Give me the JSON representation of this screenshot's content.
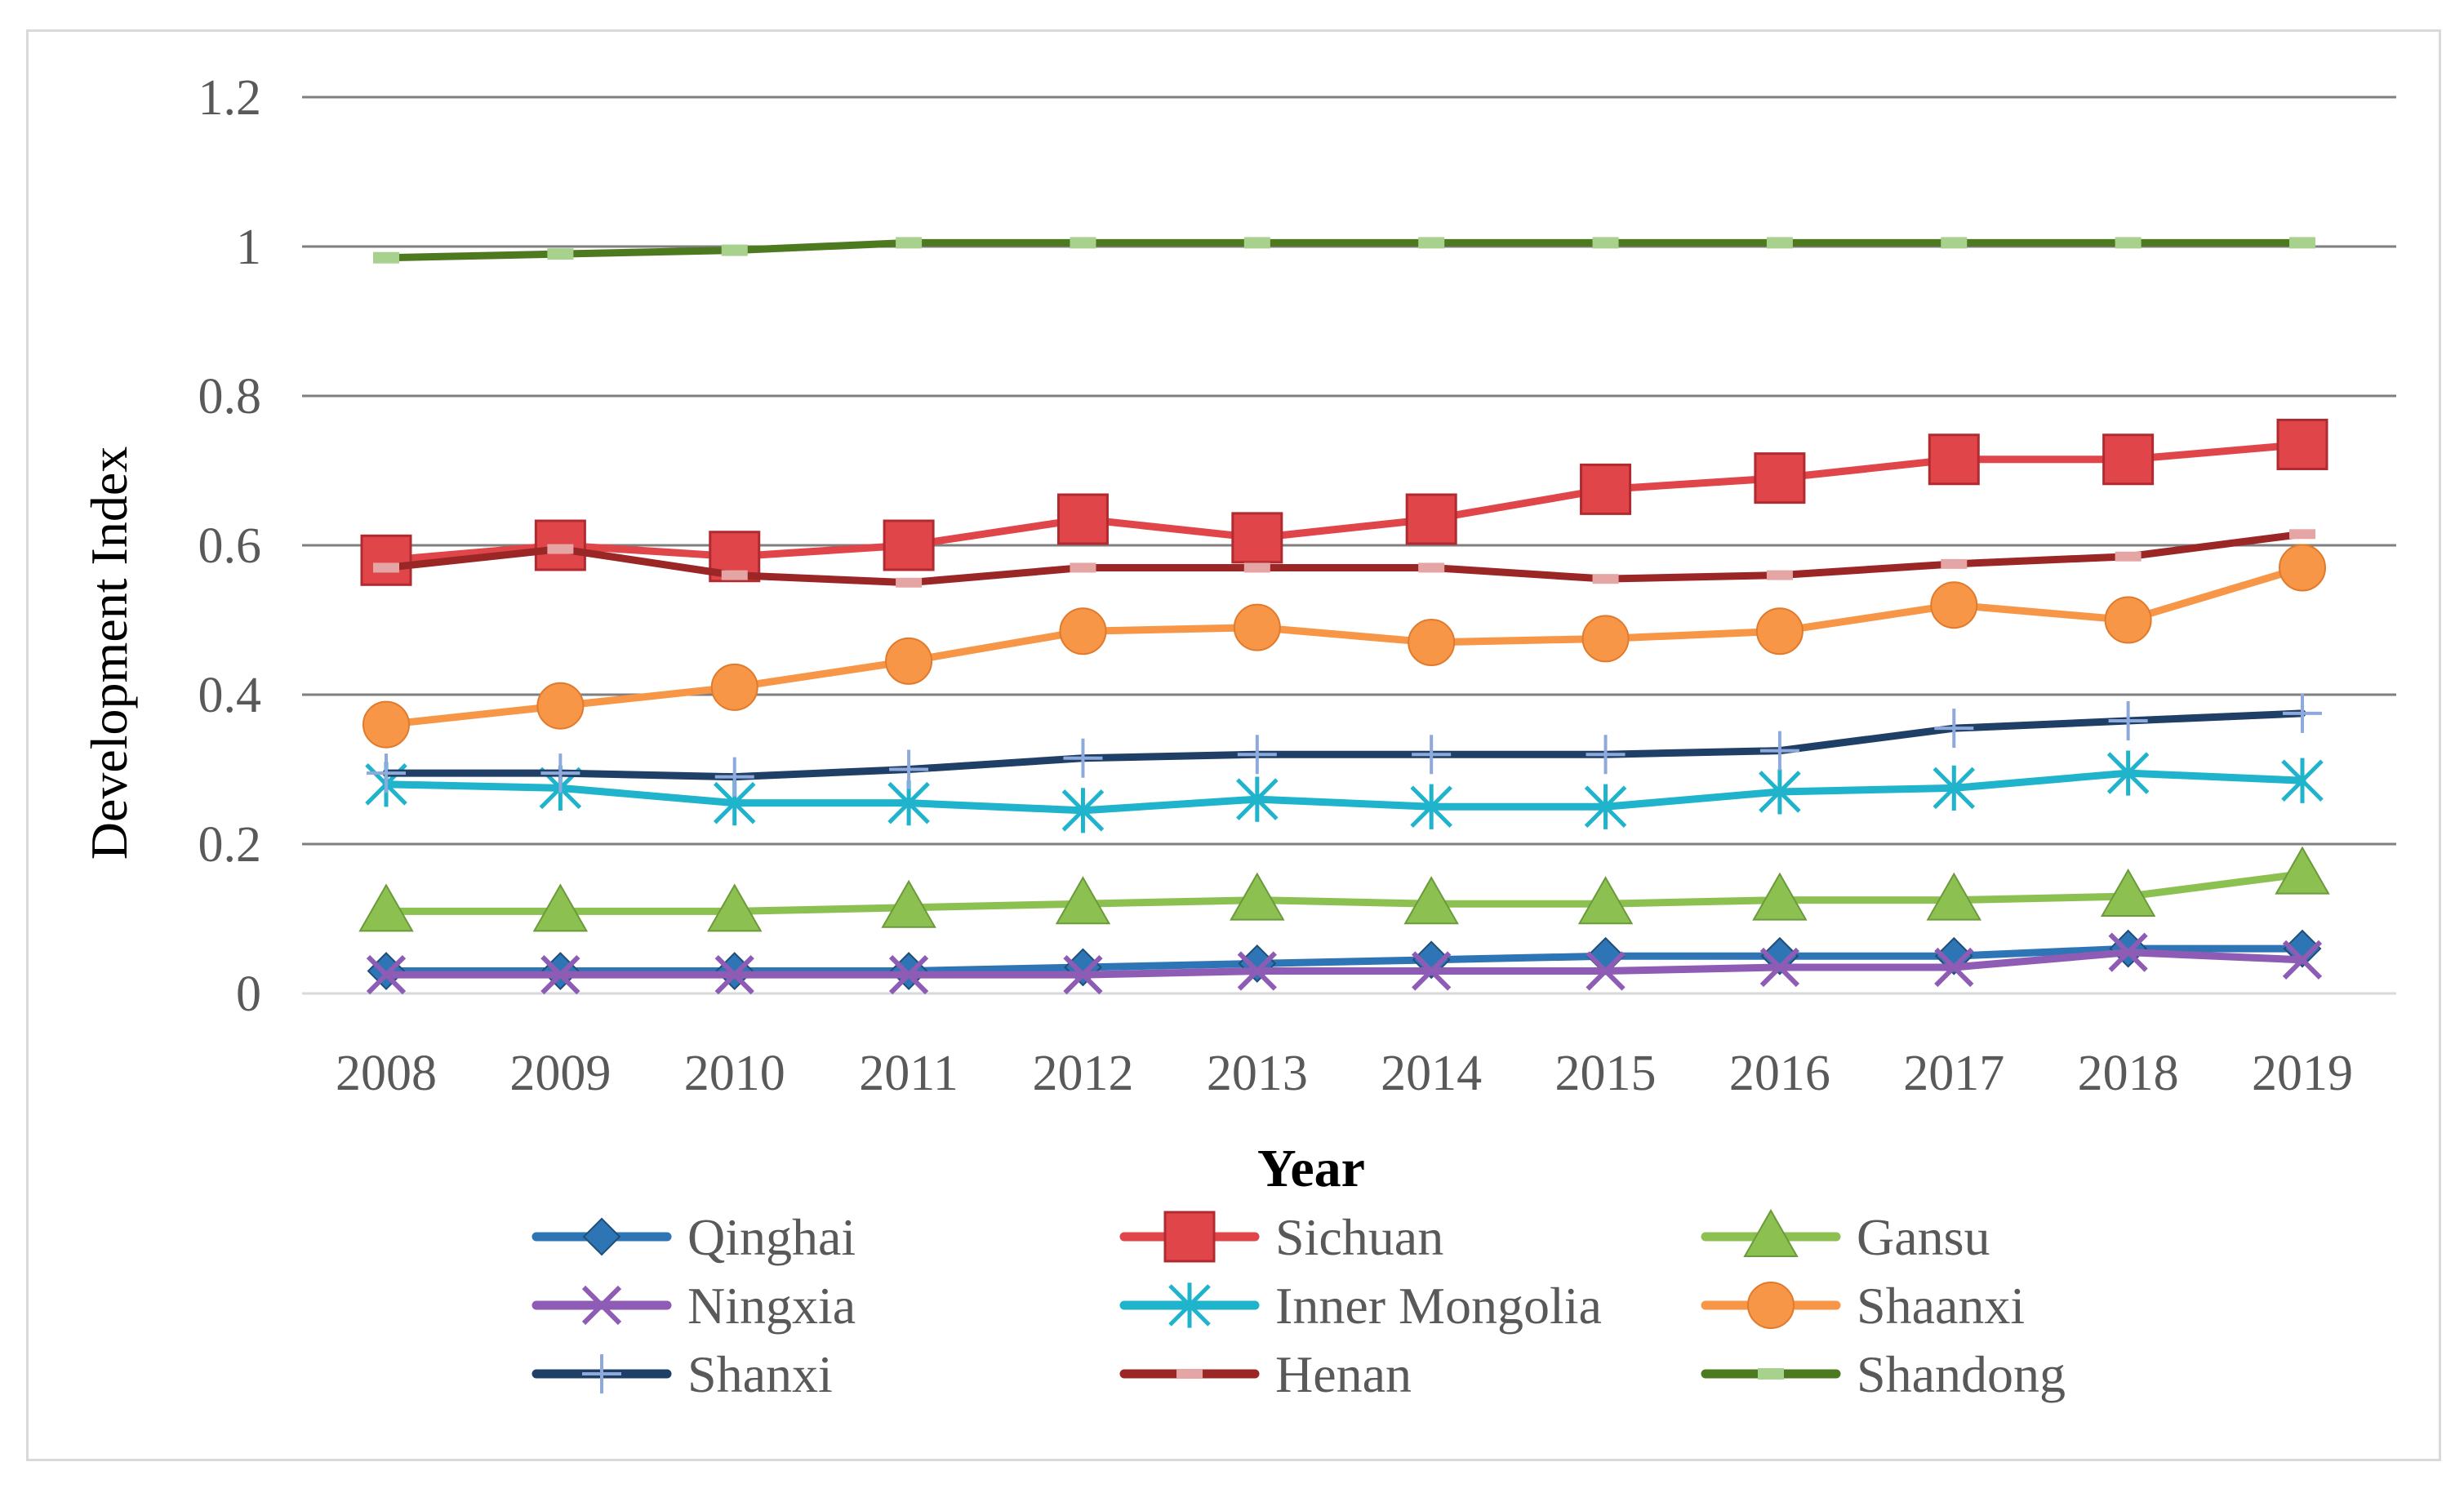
{
  "chart_data": {
    "type": "line",
    "title": "",
    "xlabel": "Year",
    "ylabel": "Development Index",
    "ylim": [
      0,
      1.2
    ],
    "yticks": [
      "0",
      "0.2",
      "0.4",
      "0.6",
      "0.8",
      "1",
      "1.2"
    ],
    "categories": [
      "2008",
      "2009",
      "2010",
      "2011",
      "2012",
      "2013",
      "2014",
      "2015",
      "2016",
      "2017",
      "2018",
      "2019"
    ],
    "grid": true,
    "legend_position": "bottom",
    "series": [
      {
        "name": "Qinghai",
        "color": "#2e75b6",
        "marker": "diamond",
        "values": [
          0.03,
          0.03,
          0.03,
          0.03,
          0.035,
          0.04,
          0.045,
          0.05,
          0.05,
          0.05,
          0.06,
          0.06
        ]
      },
      {
        "name": "Sichuan",
        "color": "#e0454a",
        "marker": "square",
        "values": [
          0.58,
          0.6,
          0.585,
          0.6,
          0.635,
          0.61,
          0.635,
          0.675,
          0.69,
          0.715,
          0.715,
          0.735
        ]
      },
      {
        "name": "Gansu",
        "color": "#8cc152",
        "marker": "triangle",
        "values": [
          0.11,
          0.11,
          0.11,
          0.115,
          0.12,
          0.125,
          0.12,
          0.12,
          0.125,
          0.125,
          0.13,
          0.16
        ]
      },
      {
        "name": "Ningxia",
        "color": "#8e5bb5",
        "marker": "x",
        "values": [
          0.025,
          0.025,
          0.025,
          0.025,
          0.025,
          0.03,
          0.03,
          0.03,
          0.035,
          0.035,
          0.055,
          0.045
        ]
      },
      {
        "name": "Inner Mongolia",
        "color": "#1fb3cc",
        "marker": "star",
        "values": [
          0.28,
          0.275,
          0.255,
          0.255,
          0.245,
          0.26,
          0.25,
          0.25,
          0.27,
          0.275,
          0.295,
          0.285
        ]
      },
      {
        "name": "Shaanxi",
        "color": "#f79646",
        "marker": "circle",
        "values": [
          0.36,
          0.385,
          0.41,
          0.445,
          0.485,
          0.49,
          0.47,
          0.475,
          0.485,
          0.52,
          0.5,
          0.57
        ]
      },
      {
        "name": "Shanxi",
        "color": "#1f3f66",
        "marker": "plus",
        "values": [
          0.295,
          0.295,
          0.29,
          0.3,
          0.315,
          0.32,
          0.32,
          0.32,
          0.325,
          0.355,
          0.365,
          0.375
        ]
      },
      {
        "name": "Henan",
        "color": "#9b2626",
        "marker": "dash",
        "values": [
          0.57,
          0.595,
          0.56,
          0.55,
          0.57,
          0.57,
          0.57,
          0.555,
          0.56,
          0.575,
          0.585,
          0.615
        ]
      },
      {
        "name": "Shandong",
        "color": "#4d7a1e",
        "marker": "dash-light",
        "values": [
          0.985,
          0.99,
          0.995,
          1.005,
          1.005,
          1.005,
          1.005,
          1.005,
          1.005,
          1.005,
          1.005,
          1.005
        ]
      }
    ]
  }
}
